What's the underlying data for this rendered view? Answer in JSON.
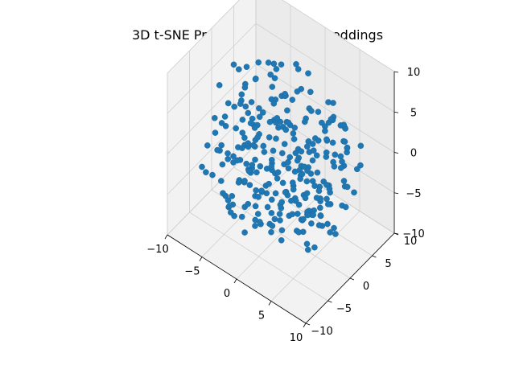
{
  "chart_data": {
    "type": "scatter",
    "projection": "3d",
    "title": "3D t-SNE Projection of the Embeddings",
    "xlabel": "",
    "ylabel": "",
    "zlabel": "",
    "xlim": [
      -10,
      10
    ],
    "ylim": [
      -10,
      10
    ],
    "zlim": [
      -10,
      10
    ],
    "xticks": [
      -10,
      -5,
      0,
      5,
      10
    ],
    "yticks": [
      -10,
      -5,
      0,
      5,
      10
    ],
    "zticks": [
      -10,
      -5,
      0,
      5,
      10
    ],
    "grid": true,
    "color": "#1f77b4",
    "points_note": "approx. 300 points scattered roughly uniformly within a ball of radius ~10 around the origin",
    "point_count": 300,
    "sample_seed": 7
  }
}
